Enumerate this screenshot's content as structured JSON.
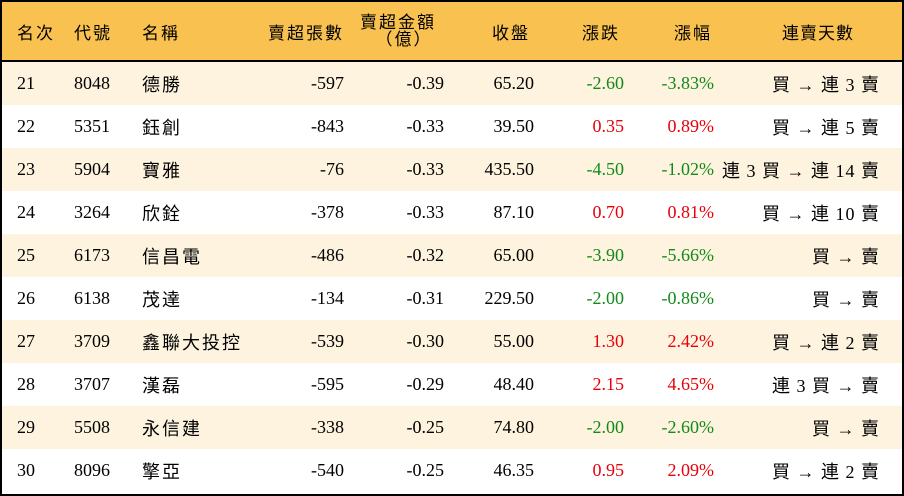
{
  "header": {
    "rank": "名次",
    "code": "代號",
    "name": "名稱",
    "net_sell_lots": "賣超張數",
    "net_sell_amount_line1": "賣超金額",
    "net_sell_amount_line2": "（億）",
    "close": "收盤",
    "change": "漲跌",
    "change_pct": "漲幅",
    "streak": "連賣天數"
  },
  "colors": {
    "header_bg": "#F8C150",
    "row_odd_bg": "#FDF3DE",
    "row_even_bg": "#FFFFFF",
    "up": "#E8000B",
    "down": "#138A1A"
  },
  "rows": [
    {
      "rank": "21",
      "code": "8048",
      "name": "德勝",
      "lots": "-597",
      "amount": "-0.39",
      "close": "65.20",
      "change": "-2.60",
      "pct": "-3.83%",
      "dir": "down",
      "streak": "買 → 連 3 賣"
    },
    {
      "rank": "22",
      "code": "5351",
      "name": "鈺創",
      "lots": "-843",
      "amount": "-0.33",
      "close": "39.50",
      "change": "0.35",
      "pct": "0.89%",
      "dir": "up",
      "streak": "買 → 連 5 賣"
    },
    {
      "rank": "23",
      "code": "5904",
      "name": "寶雅",
      "lots": "-76",
      "amount": "-0.33",
      "close": "435.50",
      "change": "-4.50",
      "pct": "-1.02%",
      "dir": "down",
      "streak": "連 3 買 → 連 14 賣"
    },
    {
      "rank": "24",
      "code": "3264",
      "name": "欣銓",
      "lots": "-378",
      "amount": "-0.33",
      "close": "87.10",
      "change": "0.70",
      "pct": "0.81%",
      "dir": "up",
      "streak": "買 → 連 10 賣"
    },
    {
      "rank": "25",
      "code": "6173",
      "name": "信昌電",
      "lots": "-486",
      "amount": "-0.32",
      "close": "65.00",
      "change": "-3.90",
      "pct": "-5.66%",
      "dir": "down",
      "streak": "買 → 賣"
    },
    {
      "rank": "26",
      "code": "6138",
      "name": "茂達",
      "lots": "-134",
      "amount": "-0.31",
      "close": "229.50",
      "change": "-2.00",
      "pct": "-0.86%",
      "dir": "down",
      "streak": "買 → 賣"
    },
    {
      "rank": "27",
      "code": "3709",
      "name": "鑫聯大投控",
      "lots": "-539",
      "amount": "-0.30",
      "close": "55.00",
      "change": "1.30",
      "pct": "2.42%",
      "dir": "up",
      "streak": "買 → 連 2 賣"
    },
    {
      "rank": "28",
      "code": "3707",
      "name": "漢磊",
      "lots": "-595",
      "amount": "-0.29",
      "close": "48.40",
      "change": "2.15",
      "pct": "4.65%",
      "dir": "up",
      "streak": "連 3 買 → 賣"
    },
    {
      "rank": "29",
      "code": "5508",
      "name": "永信建",
      "lots": "-338",
      "amount": "-0.25",
      "close": "74.80",
      "change": "-2.00",
      "pct": "-2.60%",
      "dir": "down",
      "streak": "買 → 賣"
    },
    {
      "rank": "30",
      "code": "8096",
      "name": "擎亞",
      "lots": "-540",
      "amount": "-0.25",
      "close": "46.35",
      "change": "0.95",
      "pct": "2.09%",
      "dir": "up",
      "streak": "買 → 連 2 賣"
    }
  ]
}
